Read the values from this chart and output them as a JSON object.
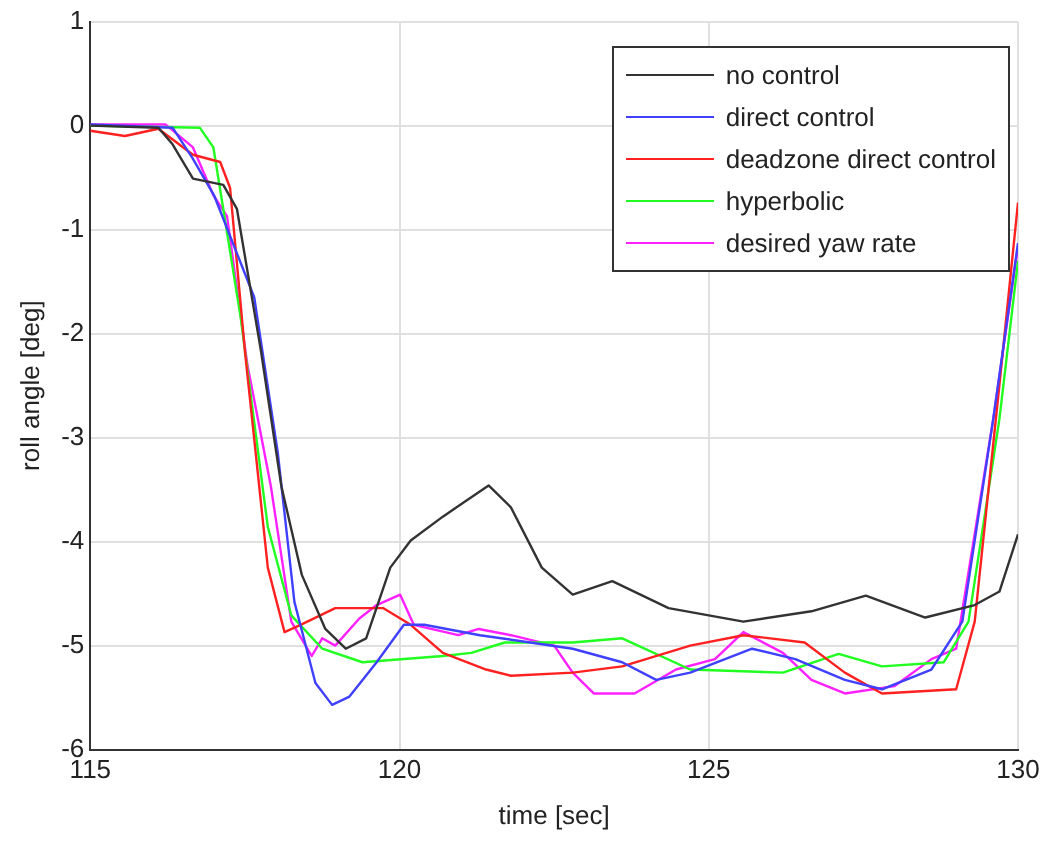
{
  "chart_data": {
    "type": "line",
    "xlabel": "time [sec]",
    "ylabel": "roll angle [deg]",
    "xlim": [
      115,
      130
    ],
    "xticks": [
      115,
      120,
      125,
      130
    ],
    "ylim": [
      -6,
      1
    ],
    "yticks": [
      -6,
      -5,
      -4,
      -3,
      -2,
      -1,
      0,
      1
    ],
    "grid": true,
    "legend": "top right",
    "marker": "none",
    "line_style": "solid",
    "series": [
      {
        "name": "no control",
        "color": "#333333",
        "x": [
          115,
          116.1,
          116.33,
          116.66,
          117.15,
          117.37,
          117.76,
          118.09,
          118.42,
          118.8,
          119.13,
          119.46,
          119.85,
          120.18,
          120.7,
          121.44,
          121.8,
          122.3,
          122.8,
          123.44,
          124.35,
          125.56,
          126.66,
          127.54,
          128.5,
          129.3,
          129.7,
          130
        ],
        "values": [
          0,
          -0.02,
          -0.18,
          -0.51,
          -0.57,
          -0.8,
          -2.17,
          -3.47,
          -4.32,
          -4.84,
          -5.03,
          -4.93,
          -4.25,
          -3.99,
          -3.76,
          -3.46,
          -3.67,
          -4.25,
          -4.51,
          -4.38,
          -4.64,
          -4.77,
          -4.67,
          -4.52,
          -4.73,
          -4.61,
          -4.48,
          -3.93
        ]
      },
      {
        "name": "direct control",
        "color": "#4040ff",
        "x": [
          115,
          116.33,
          116.65,
          117,
          117.65,
          118.03,
          118.3,
          118.64,
          118.91,
          119.19,
          119.63,
          120.07,
          120.4,
          121.3,
          122.8,
          123.6,
          124.15,
          124.7,
          125.7,
          126.4,
          127.2,
          127.8,
          128.6,
          129.1,
          129.6,
          130
        ],
        "values": [
          0.01,
          -0.02,
          -0.31,
          -0.67,
          -1.65,
          -3.14,
          -4.58,
          -5.36,
          -5.57,
          -5.49,
          -5.16,
          -4.8,
          -4.8,
          -4.9,
          -5.03,
          -5.16,
          -5.33,
          -5.26,
          -5.03,
          -5.13,
          -5.33,
          -5.42,
          -5.23,
          -4.77,
          -2.82,
          -1.13
        ]
      },
      {
        "name": "deadzone direct control",
        "color": "#ff2020",
        "x": [
          115,
          115.56,
          116.1,
          116.66,
          117.1,
          117.26,
          117.5,
          117.87,
          118.14,
          118.4,
          118.96,
          119.74,
          120.18,
          120.7,
          121.4,
          121.8,
          122.8,
          123.6,
          124.7,
          125.56,
          126.55,
          127.2,
          127.8,
          129,
          129.3,
          129.7,
          130
        ],
        "values": [
          -0.05,
          -0.1,
          -0.03,
          -0.28,
          -0.35,
          -0.6,
          -2.17,
          -4.25,
          -4.87,
          -4.8,
          -4.64,
          -4.64,
          -4.8,
          -5.07,
          -5.23,
          -5.29,
          -5.26,
          -5.2,
          -5,
          -4.9,
          -4.97,
          -5.26,
          -5.46,
          -5.42,
          -4.77,
          -2.49,
          -0.74
        ]
      },
      {
        "name": "hyperbolic",
        "color": "#20ff20",
        "x": [
          115,
          116.77,
          116.99,
          117.43,
          117.87,
          118.25,
          118.75,
          119.4,
          120.7,
          121.16,
          121.7,
          122.8,
          123.6,
          124.7,
          126.2,
          127.1,
          127.8,
          128.8,
          129.2,
          129.7,
          130
        ],
        "values": [
          0,
          -0.02,
          -0.21,
          -1.84,
          -3.86,
          -4.71,
          -5.03,
          -5.16,
          -5.1,
          -5.07,
          -4.97,
          -4.97,
          -4.93,
          -5.23,
          -5.26,
          -5.08,
          -5.2,
          -5.16,
          -4.77,
          -2.82,
          -1.3
        ]
      },
      {
        "name": "desired yaw rate",
        "color": "#ff20ff",
        "x": [
          115,
          116.22,
          116.66,
          116.99,
          117.21,
          117.54,
          117.92,
          118.25,
          118.58,
          118.75,
          118.96,
          119.35,
          119.63,
          120.01,
          120.23,
          120.95,
          121.28,
          121.8,
          122.5,
          122.8,
          123.14,
          123.8,
          124.47,
          125.1,
          125.56,
          126.2,
          126.66,
          127.2,
          128,
          128.6,
          129,
          129.6,
          130
        ],
        "values": [
          0.01,
          0.01,
          -0.21,
          -0.67,
          -0.87,
          -2.3,
          -3.47,
          -4.77,
          -5.1,
          -4.93,
          -5,
          -4.74,
          -4.61,
          -4.51,
          -4.8,
          -4.9,
          -4.84,
          -4.9,
          -5,
          -5.26,
          -5.46,
          -5.46,
          -5.23,
          -5.13,
          -4.87,
          -5.07,
          -5.33,
          -5.46,
          -5.39,
          -5.13,
          -5.03,
          -2.82,
          -1.16
        ]
      }
    ]
  }
}
